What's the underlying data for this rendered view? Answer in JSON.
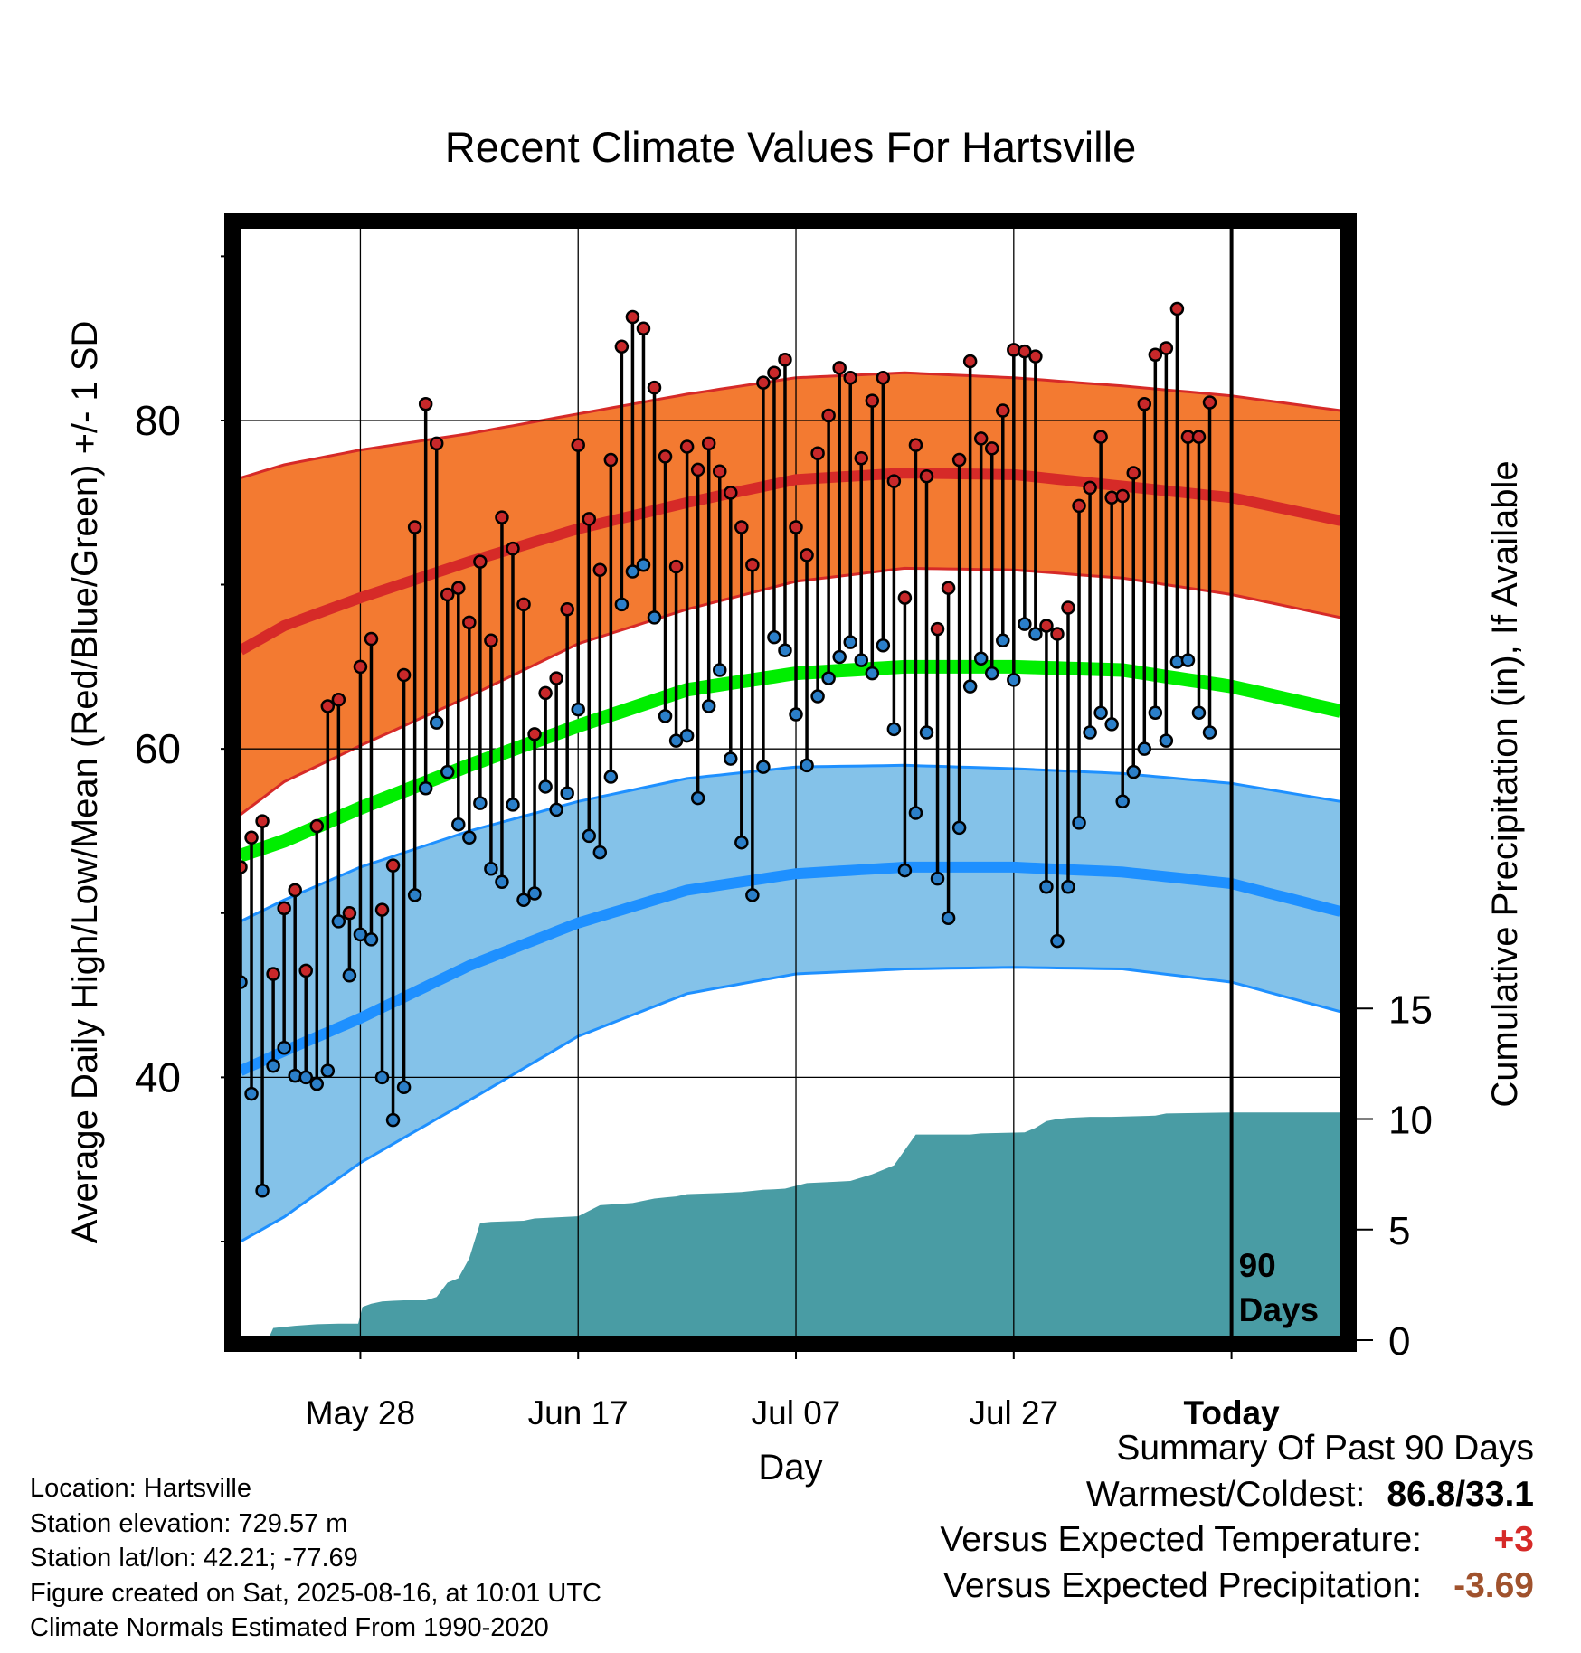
{
  "chart_data": {
    "type": "line",
    "title": "Recent Climate Values For Hartsville",
    "xlabel": "Day",
    "ylabel": "Average Daily High/Low/Mean (Red/Blue/Green) +/- 1 SD",
    "y2label": "Cumulative Precipitation (in), If Available",
    "x_ticks": [
      {
        "day": 15,
        "label": "May 28"
      },
      {
        "day": 35,
        "label": "Jun 17"
      },
      {
        "day": 55,
        "label": "Jul 07"
      },
      {
        "day": 75,
        "label": "Jul 27"
      },
      {
        "day": 95,
        "label": "Today"
      }
    ],
    "xlim": [
      4,
      105
    ],
    "ylim": [
      24,
      92
    ],
    "y_ticks": [
      40,
      60,
      80
    ],
    "y_minor_ticks": [
      30,
      50,
      70,
      90
    ],
    "y2lim": [
      0,
      15
    ],
    "y2_ticks": [
      0,
      5,
      10,
      15
    ],
    "today_day": 95,
    "today_marker_label": [
      "90",
      "Days"
    ],
    "normals": {
      "day": [
        4,
        8,
        15,
        25,
        35,
        45,
        55,
        65,
        75,
        85,
        95,
        105
      ],
      "high_mean": [
        66.0,
        67.5,
        69.2,
        71.4,
        73.4,
        75.0,
        76.4,
        76.8,
        76.7,
        76.0,
        75.3,
        73.9
      ],
      "high_sd_upper": [
        76.5,
        77.3,
        78.2,
        79.2,
        80.4,
        81.6,
        82.6,
        82.9,
        82.6,
        82.1,
        81.5,
        80.6
      ],
      "high_sd_lower": [
        56.0,
        58.0,
        60.2,
        63.2,
        66.4,
        68.5,
        70.2,
        71.0,
        70.9,
        70.4,
        69.4,
        68.0
      ],
      "mean": [
        53.5,
        54.4,
        56.4,
        59.0,
        61.4,
        63.6,
        64.6,
        65.0,
        65.0,
        64.8,
        63.8,
        62.3
      ],
      "low_mean": [
        40.4,
        41.6,
        43.6,
        46.8,
        49.4,
        51.4,
        52.4,
        52.8,
        52.8,
        52.5,
        51.8,
        50.1
      ],
      "low_sd_upper": [
        49.5,
        50.8,
        52.8,
        55.0,
        56.8,
        58.2,
        58.9,
        59.0,
        58.8,
        58.5,
        57.9,
        56.8
      ],
      "low_sd_lower": [
        30.0,
        31.5,
        34.8,
        38.6,
        42.5,
        45.1,
        46.3,
        46.6,
        46.7,
        46.6,
        45.8,
        44.0
      ]
    },
    "series": [
      {
        "name": "High",
        "start_day": 4,
        "values": [
          52.8,
          54.6,
          55.6,
          46.3,
          50.3,
          51.4,
          46.5,
          55.3,
          62.6,
          63.0,
          50.0,
          65.0,
          66.7,
          50.2,
          52.9,
          64.5,
          73.5,
          81.0,
          78.6,
          69.4,
          69.8,
          67.7,
          71.4,
          66.6,
          74.1,
          72.2,
          68.8,
          60.9,
          63.4,
          64.3,
          68.5,
          78.5,
          74.0,
          70.9,
          77.6,
          84.5,
          86.3,
          85.6,
          82.0,
          77.8,
          71.1,
          78.4,
          77.0,
          78.6,
          76.9,
          75.6,
          73.5,
          71.2,
          82.3,
          82.9,
          83.7,
          73.5,
          71.8,
          78.0,
          80.3,
          83.2,
          82.6,
          77.7,
          81.2,
          82.6,
          76.3,
          69.2,
          78.5,
          76.6,
          67.3,
          69.8,
          77.6,
          83.6,
          78.9,
          78.3,
          80.6,
          84.3,
          84.2,
          83.9,
          67.5,
          67.0,
          68.6,
          74.8,
          75.9,
          79.0,
          75.3,
          75.4,
          76.8,
          81.0,
          84.0,
          84.4,
          86.8,
          79.0,
          79.0,
          81.1
        ]
      },
      {
        "name": "Low",
        "start_day": 4,
        "values": [
          45.8,
          39.0,
          33.1,
          40.7,
          41.8,
          40.1,
          40.0,
          39.6,
          40.4,
          49.5,
          46.2,
          48.7,
          48.4,
          40.0,
          37.4,
          39.4,
          51.1,
          57.6,
          61.6,
          58.6,
          55.4,
          54.6,
          56.7,
          52.7,
          51.9,
          56.6,
          50.8,
          51.2,
          57.7,
          56.3,
          57.3,
          62.4,
          54.7,
          53.7,
          58.3,
          68.8,
          70.8,
          71.2,
          68.0,
          62.0,
          60.5,
          60.8,
          57.0,
          62.6,
          64.8,
          59.4,
          54.3,
          51.1,
          58.9,
          66.8,
          66.0,
          62.1,
          59.0,
          63.2,
          64.3,
          65.6,
          66.5,
          65.4,
          64.6,
          66.3,
          61.2,
          52.6,
          56.1,
          61.0,
          52.1,
          49.7,
          55.2,
          63.8,
          65.5,
          64.6,
          66.6,
          64.2,
          67.6,
          67.0,
          51.6,
          48.3,
          51.6,
          55.5,
          61.0,
          62.2,
          61.5,
          56.8,
          58.6,
          60.0,
          62.2,
          60.5,
          65.3,
          65.4,
          62.2,
          61.0
        ]
      }
    ],
    "precipitation": {
      "name": "Cumulative Precipitation",
      "day": [
        4,
        6.5,
        7,
        9,
        11,
        13,
        14.8,
        15.2,
        16,
        17,
        18,
        19,
        20,
        21,
        22,
        23,
        24,
        25,
        26,
        27,
        30,
        31,
        35,
        36,
        37,
        40,
        42,
        43,
        44,
        45,
        48,
        50,
        51,
        52,
        53,
        54,
        56,
        58,
        60,
        62,
        64,
        66,
        67,
        68,
        71,
        72,
        76,
        77,
        78,
        79,
        80,
        82,
        84,
        88,
        89,
        95,
        100,
        105
      ],
      "inches": [
        0,
        0,
        0.55,
        0.65,
        0.72,
        0.75,
        0.75,
        1.5,
        1.65,
        1.75,
        1.78,
        1.8,
        1.8,
        1.8,
        1.95,
        2.6,
        2.8,
        3.7,
        5.3,
        5.35,
        5.4,
        5.5,
        5.6,
        5.85,
        6.1,
        6.2,
        6.4,
        6.45,
        6.5,
        6.6,
        6.65,
        6.7,
        6.75,
        6.8,
        6.82,
        6.85,
        7.1,
        7.15,
        7.2,
        7.5,
        7.9,
        9.3,
        9.3,
        9.3,
        9.3,
        9.35,
        9.4,
        9.6,
        9.9,
        10.0,
        10.05,
        10.1,
        10.1,
        10.15,
        10.25,
        10.3,
        10.3,
        10.3
      ]
    },
    "colors": {
      "high_band": "#F37A31",
      "high_line": "#D62A28",
      "low_band": "#84C2E9",
      "low_line": "#1E90FF",
      "mean_line": "#00EE00",
      "precip_fill": "#499CA4",
      "high_point": "#C8282A",
      "low_point": "#2B7FC9"
    },
    "grid": true
  },
  "info": {
    "location": "Location: Hartsville",
    "elevation": "Station elevation: 729.57 m",
    "latlon": "Station lat/lon: 42.21; -77.69",
    "created": "Figure created on Sat, 2025-08-16, at 10:01 UTC",
    "normals": "Climate Normals Estimated From 1990-2020"
  },
  "summary": {
    "heading": "Summary Of Past 90 Days",
    "warm_cold_label": "Warmest/Coldest:",
    "warm_cold_value": "86.8/33.1",
    "temp_label": "Versus Expected Temperature:",
    "temp_value": "+3",
    "precip_label": "Versus Expected Precipitation:",
    "precip_value": "-3.69",
    "temp_value_color": "#D62A28",
    "precip_value_color": "#A0522D"
  }
}
